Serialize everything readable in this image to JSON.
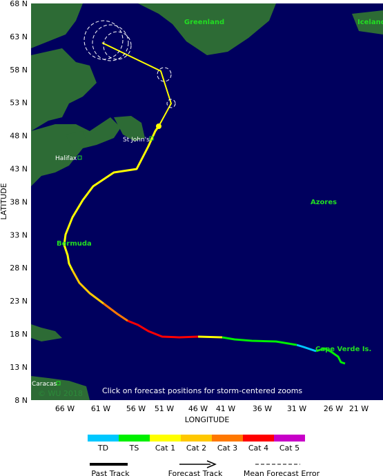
{
  "map": {
    "lat_labels": [
      "68 N",
      "63 N",
      "58 N",
      "53 N",
      "48 N",
      "43 N",
      "38 N",
      "33 N",
      "28 N",
      "23 N",
      "18 N",
      "13 N",
      "8 N"
    ],
    "lon_labels": [
      "66 W",
      "61 W",
      "56 W",
      "51 W",
      "46 W",
      "41 W",
      "36 W",
      "31 W",
      "26 W",
      "21 W"
    ],
    "x_axis_title": "LONGITUDE",
    "y_axis_title": "LATITUDE",
    "places": [
      {
        "name": "Greenland"
      },
      {
        "name": "Iceland"
      },
      {
        "name": "St John's"
      },
      {
        "name": "Halifax"
      },
      {
        "name": "Bermuda"
      },
      {
        "name": "Azores"
      },
      {
        "name": "Cape Verde Is."
      },
      {
        "name": "Caracas"
      }
    ],
    "note": "Click on forecast positions for storm-centered zooms",
    "watermark": "© WU 2018",
    "legend": [
      {
        "label": "TD",
        "color": "#00c8ff"
      },
      {
        "label": "TS",
        "color": "#00f000"
      },
      {
        "label": "Cat 1",
        "color": "#ffff00"
      },
      {
        "label": "Cat 2",
        "color": "#ffc800"
      },
      {
        "label": "Cat 3",
        "color": "#ff7800"
      },
      {
        "label": "Cat 4",
        "color": "#ff0000"
      },
      {
        "label": "Cat 5",
        "color": "#c800c8"
      }
    ],
    "line_legend": [
      "Past Track",
      "Forecast Track",
      "Mean Forecast Error"
    ]
  }
}
